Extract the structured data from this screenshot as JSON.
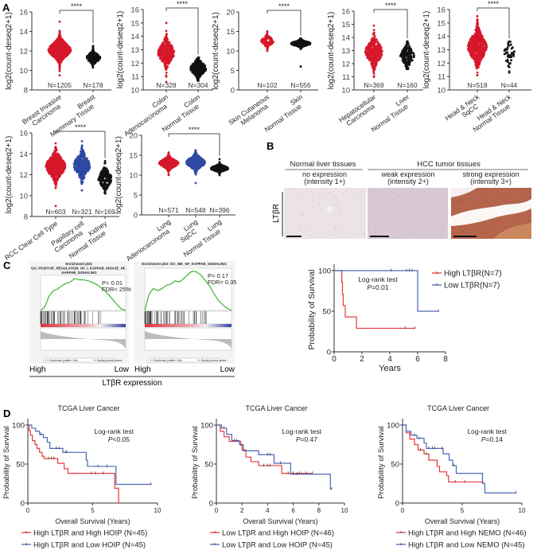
{
  "panel_labels": {
    "a": "A",
    "b": "B",
    "c": "C",
    "d": "D"
  },
  "panel_b": {
    "group_normal": "Normal liver tissues",
    "group_tumor": "HCC tumor tissues",
    "columns": [
      {
        "line1": "no expression",
        "line2": "(intensity 1+)"
      },
      {
        "line1": "weak expression",
        "line2": "(intensity 2+)"
      },
      {
        "line1": "strong expression",
        "line2": "(intensity 3+)"
      }
    ],
    "row_label": "LTβR",
    "colors": [
      "#ece4e4",
      "#d8c8d4",
      "#b5654c"
    ]
  },
  "panel_c": {
    "high_label": "High",
    "low_label": "Low",
    "axis_label": "LTβR expression"
  },
  "colors": {
    "red": "#d7182a",
    "blue": "#2e49a3",
    "black": "#111111",
    "km_red": "#e8383d",
    "km_blue": "#4a67b8",
    "gsea_green": "#3fb234"
  },
  "chart_data": [
    {
      "type": "scatter",
      "panel": "A",
      "ylabel": "log2(count-deseq2+1)",
      "ylim": [
        8,
        16
      ],
      "yticks": [
        "8",
        "10",
        "12",
        "14",
        "16"
      ],
      "significance": "****",
      "groups": [
        {
          "label": [
            "Breast Invasive",
            "Carcinoma"
          ],
          "n_label": "N=1205",
          "n": 1205,
          "color": "#d7182a",
          "median": 12.1,
          "sd": 0.6,
          "range": [
            9.5,
            15
          ]
        },
        {
          "label": [
            "Breast",
            "Mammary Tissue"
          ],
          "n_label": "N=178",
          "n": 178,
          "color": "#111111",
          "median": 11.3,
          "sd": 0.35,
          "range": [
            10.3,
            12.5
          ]
        }
      ]
    },
    {
      "type": "scatter",
      "panel": "A",
      "ylabel": "log2(count-deseq2+1)",
      "ylim": [
        10,
        16
      ],
      "yticks": [
        "10",
        "11",
        "12",
        "13",
        "14",
        "15",
        "16"
      ],
      "significance": "****",
      "groups": [
        {
          "label": [
            "Colon",
            "Adenocarcinoma"
          ],
          "n_label": "N=328",
          "n": 328,
          "color": "#d7182a",
          "median": 12.8,
          "sd": 0.55,
          "range": [
            10.6,
            15
          ]
        },
        {
          "label": [
            "Colon",
            "Normal Tissue"
          ],
          "n_label": "N=304",
          "n": 304,
          "color": "#111111",
          "median": 11.6,
          "sd": 0.35,
          "range": [
            10.7,
            12.4
          ]
        }
      ]
    },
    {
      "type": "scatter",
      "panel": "A",
      "ylabel": "log2(count-deseq2+1)",
      "ylim": [
        0,
        20
      ],
      "yticks": [
        "0",
        "5",
        "10",
        "15",
        "20"
      ],
      "significance": "****",
      "groups": [
        {
          "label": [
            "Skin Cutaneous",
            "Melanoma"
          ],
          "n_label": "N=102",
          "n": 102,
          "color": "#d7182a",
          "median": 12.5,
          "sd": 0.8,
          "range": [
            10,
            15
          ]
        },
        {
          "label": [
            "Skin",
            "Normal Tissue"
          ],
          "n_label": "N=556",
          "n": 556,
          "color": "#111111",
          "median": 11.9,
          "sd": 0.45,
          "range": [
            6,
            13.2
          ]
        }
      ]
    },
    {
      "type": "scatter",
      "panel": "A",
      "ylabel": "log2(count-deseq2+1)",
      "ylim": [
        10,
        16
      ],
      "yticks": [
        "10",
        "11",
        "12",
        "13",
        "14",
        "15",
        "16"
      ],
      "significance": "****",
      "groups": [
        {
          "label": [
            "Hepatocellular",
            "Carcinoma"
          ],
          "n_label": "N=369",
          "n": 369,
          "color": "#d7182a",
          "median": 12.9,
          "sd": 0.6,
          "range": [
            11,
            14.9
          ]
        },
        {
          "label": [
            "Liver",
            "Normal Tissue"
          ],
          "n_label": "N=160",
          "n": 160,
          "color": "#111111",
          "median": 12.6,
          "sd": 0.45,
          "range": [
            11.6,
            13.7
          ]
        }
      ]
    },
    {
      "type": "scatter",
      "panel": "A",
      "ylabel": "log2(count-deseq2+1)",
      "ylim": [
        10,
        16
      ],
      "yticks": [
        "10",
        "11",
        "12",
        "13",
        "14",
        "15",
        "16"
      ],
      "significance": "****",
      "groups": [
        {
          "label": [
            "Head & Neck",
            "SqCC"
          ],
          "n_label": "N=518",
          "n": 518,
          "color": "#d7182a",
          "median": 13.2,
          "sd": 0.7,
          "range": [
            11.1,
            15.5
          ]
        },
        {
          "label": [
            "Head & Neck",
            "Normal Tissue"
          ],
          "n_label": "N=44",
          "n": 44,
          "color": "#111111",
          "median": 12.7,
          "sd": 0.5,
          "range": [
            11.3,
            13.6
          ]
        }
      ]
    },
    {
      "type": "scatter",
      "panel": "A",
      "ylabel": "log2(count-deseq2+1)",
      "ylim": [
        8,
        16
      ],
      "yticks": [
        "8",
        "10",
        "12",
        "14",
        "16"
      ],
      "significance": "****",
      "groups": [
        {
          "label": [
            "RCC Clear Cell Type"
          ],
          "n_label": "N=603",
          "n": 603,
          "color": "#d7182a",
          "median": 12.8,
          "sd": 0.7,
          "range": [
            9,
            15
          ]
        },
        {
          "label": [
            "Papillary cell",
            "Carcinoma"
          ],
          "n_label": "N=321",
          "n": 321,
          "color": "#2e49a3",
          "median": 12.9,
          "sd": 0.7,
          "range": [
            10.5,
            15.2
          ]
        },
        {
          "label": [
            "Kidney",
            "Normal Tissue"
          ],
          "n_label": "N=169",
          "n": 169,
          "color": "#111111",
          "median": 11.6,
          "sd": 0.55,
          "range": [
            10.2,
            13.3
          ]
        }
      ]
    },
    {
      "type": "scatter",
      "panel": "A",
      "ylabel": "log2(count-deseq2+1)",
      "ylim": [
        0,
        20
      ],
      "yticks": [
        "0",
        "5",
        "10",
        "15",
        "20"
      ],
      "significance": "****",
      "groups": [
        {
          "label": [
            "Lung",
            "Adenocarcinoma"
          ],
          "n_label": "N=571",
          "n": 571,
          "color": "#d7182a",
          "median": 13,
          "sd": 0.8,
          "range": [
            10,
            15.7
          ]
        },
        {
          "label": [
            "Lung",
            "SqCC"
          ],
          "n_label": "N=548",
          "n": 548,
          "color": "#2e49a3",
          "median": 13.2,
          "sd": 1.0,
          "range": [
            8,
            16.2
          ]
        },
        {
          "label": [
            "Lung",
            "Normal Tissue"
          ],
          "n_label": "N=396",
          "n": 396,
          "color": "#111111",
          "median": 11.7,
          "sd": 0.5,
          "range": [
            10,
            14
          ]
        }
      ]
    },
    {
      "type": "line",
      "panel": "C",
      "subtype": "gsea",
      "title": [
        "Enrichment plot:",
        "GO_POSITIVE_REGULATION_OF_I_KAPPAB_KINASE_NF_",
        "KAPPAB_SIGNALING"
      ],
      "stats": [
        "P< 0.01",
        "FDR< 25%"
      ],
      "ylim": [
        0,
        0.47
      ],
      "es": [
        0,
        0.05,
        0.2,
        0.28,
        0.3,
        0.35,
        0.38,
        0.4,
        0.45,
        0.43,
        0.43,
        0.42,
        0.4,
        0.37,
        0.33,
        0.28,
        0.22,
        0.15,
        0.08,
        0.02,
        0
      ],
      "legend": [
        "Enrichment profile",
        "Hits",
        "Ranking metric scores"
      ]
    },
    {
      "type": "line",
      "panel": "C",
      "subtype": "gsea",
      "title": [
        "Enrichment plot: GO_NIK_NF_KAPPAB_SIGNALING"
      ],
      "stats": [
        "P= 0.17",
        "FDR= 0.35"
      ],
      "ylim": [
        0,
        0.37
      ],
      "es": [
        0,
        0.15,
        0.2,
        0.18,
        0.2,
        0.23,
        0.24,
        0.27,
        0.26,
        0.29,
        0.33,
        0.36,
        0.35,
        0.32,
        0.27,
        0.22,
        0.15,
        0.09,
        0.05,
        0.02,
        0
      ],
      "legend": [
        "Enrichment profile",
        "Hits",
        "Ranking metric scores"
      ]
    },
    {
      "type": "line",
      "panel": "C",
      "subtype": "kaplan-meier",
      "title": "",
      "xlabel": "Years",
      "ylabel": "Probability of Survival",
      "xlim": [
        0,
        8
      ],
      "xticks": [
        "0",
        "2",
        "4",
        "6",
        "8"
      ],
      "ylim": [
        0,
        100
      ],
      "yticks": [
        "0",
        "50",
        "100"
      ],
      "annotation": "Log-rank test",
      "p_prefix": "P",
      "p_value": "=0.01",
      "legend_position": "right",
      "series": [
        {
          "name": "High LTβR(N=7)",
          "color": "#e8383d",
          "steps": [
            [
              0.55,
              86
            ],
            [
              0.6,
              71
            ],
            [
              0.65,
              57
            ],
            [
              0.8,
              43
            ],
            [
              1.6,
              29
            ]
          ],
          "end": 5.8,
          "censored": [
            5.1,
            5.8
          ]
        },
        {
          "name": "Low LTβR(N=7)",
          "color": "#4a67b8",
          "steps": [
            [
              6,
              50
            ]
          ],
          "end": 7.5,
          "censored": [
            4.1,
            5.2,
            5.4,
            5.6,
            7.5
          ]
        }
      ]
    },
    {
      "type": "line",
      "panel": "D",
      "subtype": "kaplan-meier",
      "title": "TCGA Liver Cancer",
      "xlabel": "Overall Survival (Years)",
      "ylabel": "Probability of Survival",
      "xlim": [
        0,
        10
      ],
      "xticks": [
        "0",
        "5",
        "10"
      ],
      "ylim": [
        0,
        100
      ],
      "yticks": [
        "0",
        "50",
        "100"
      ],
      "annotation": "Log-rank test",
      "p_prefix": "P",
      "p_value": "<0.05",
      "legend_position": "bottom",
      "series": [
        {
          "name": "High LTβR and High HOIP (N=45)",
          "color": "#e8383d",
          "steps": [
            [
              0.1,
              93
            ],
            [
              0.2,
              87
            ],
            [
              0.35,
              80
            ],
            [
              0.55,
              75
            ],
            [
              0.7,
              70
            ],
            [
              0.9,
              65
            ],
            [
              1.1,
              60
            ],
            [
              1.25,
              57
            ],
            [
              2.3,
              51
            ],
            [
              2.8,
              44
            ],
            [
              3.1,
              38
            ],
            [
              6.7,
              19
            ],
            [
              7,
              0
            ]
          ],
          "end": 7,
          "censored": [
            1.6,
            1.8,
            2.0,
            4.9,
            5.2,
            5.8
          ]
        },
        {
          "name": "High LTβR and Low HOIP (N=45)",
          "color": "#4a67b8",
          "steps": [
            [
              0.3,
              96
            ],
            [
              0.6,
              92
            ],
            [
              0.9,
              88
            ],
            [
              1.2,
              84
            ],
            [
              1.5,
              78
            ],
            [
              1.7,
              70
            ],
            [
              2.7,
              65
            ],
            [
              4.5,
              55
            ],
            [
              4.6,
              47
            ],
            [
              6.8,
              24
            ]
          ],
          "end": 9.5,
          "censored": [
            1.0,
            2.2,
            2.4,
            2.9,
            3.0,
            5.4,
            6.1,
            9.5
          ]
        }
      ]
    },
    {
      "type": "line",
      "panel": "D",
      "subtype": "kaplan-meier",
      "title": "TCGA Liver Cancer",
      "xlabel": "Overall Survival (Years)",
      "ylabel": "Probability of Survival",
      "xlim": [
        0,
        10
      ],
      "xticks": [
        "0",
        "2",
        "4",
        "6",
        "8",
        "10"
      ],
      "ylim": [
        0,
        100
      ],
      "yticks": [
        "0",
        "50",
        "100"
      ],
      "annotation": "Log-rank test",
      "p_prefix": "P",
      "p_value": "=0.47",
      "legend_position": "bottom",
      "series": [
        {
          "name": "Low LTβR and High HOIP (N=46)",
          "color": "#e8383d",
          "steps": [
            [
              0.3,
              92
            ],
            [
              0.6,
              85
            ],
            [
              1.0,
              79
            ],
            [
              1.9,
              74
            ],
            [
              2.0,
              68
            ],
            [
              2.3,
              59
            ],
            [
              2.7,
              53
            ],
            [
              3.3,
              48
            ],
            [
              5.1,
              38
            ]
          ],
          "end": 7.5,
          "censored": [
            3.7,
            4.0,
            4.2,
            5.6,
            6.0,
            6.5,
            7.0,
            7.5
          ]
        },
        {
          "name": "Low LTβR and Low HOIP (N=45)",
          "color": "#4a67b8",
          "steps": [
            [
              0.4,
              96
            ],
            [
              0.8,
              88
            ],
            [
              1.2,
              80
            ],
            [
              1.8,
              75
            ],
            [
              2.1,
              67
            ],
            [
              3.3,
              62
            ],
            [
              4.5,
              51
            ],
            [
              5.8,
              37
            ],
            [
              8.9,
              18
            ]
          ],
          "end": 9.0,
          "censored": [
            0.6,
            1.4,
            1.6,
            4.0,
            4.2,
            5.0,
            6.3,
            9.0
          ]
        }
      ]
    },
    {
      "type": "line",
      "panel": "D",
      "subtype": "kaplan-meier",
      "title": "TCGA Liver Cancer",
      "xlabel": "Overall Survival (Years)",
      "ylabel": "Probability of Survival",
      "xlim": [
        0,
        10
      ],
      "xticks": [
        "0",
        "5",
        "10"
      ],
      "ylim": [
        0,
        100
      ],
      "yticks": [
        "0",
        "50",
        "100"
      ],
      "annotation": "Log-rank test",
      "p_prefix": "P",
      "p_value": "=0.14",
      "legend_position": "bottom",
      "series": [
        {
          "name": "High LTβR and High NEMO (N=46)",
          "color": "#e8383d",
          "steps": [
            [
              0.3,
              90
            ],
            [
              0.6,
              82
            ],
            [
              1.0,
              75
            ],
            [
              1.3,
              68
            ],
            [
              1.8,
              63
            ],
            [
              2.2,
              55
            ],
            [
              2.9,
              47
            ],
            [
              3.1,
              40
            ],
            [
              3.7,
              35
            ],
            [
              3.85,
              27
            ]
          ],
          "end": 6.8,
          "censored": [
            1.5,
            2.0,
            4.4,
            5.2
          ]
        },
        {
          "name": "High LTβR and Low NEMO (N=45)",
          "color": "#4a67b8",
          "steps": [
            [
              0.3,
              92
            ],
            [
              0.7,
              87
            ],
            [
              1.2,
              83
            ],
            [
              1.8,
              77
            ],
            [
              2.0,
              70
            ],
            [
              3.4,
              63
            ],
            [
              3.9,
              55
            ],
            [
              4.2,
              48
            ],
            [
              4.5,
              38
            ],
            [
              6.7,
              25
            ],
            [
              6.9,
              13
            ]
          ],
          "end": 9.5,
          "censored": [
            1.0,
            1.4,
            2.2,
            2.5,
            2.7,
            3.3,
            4.3,
            9.5
          ]
        }
      ]
    }
  ]
}
